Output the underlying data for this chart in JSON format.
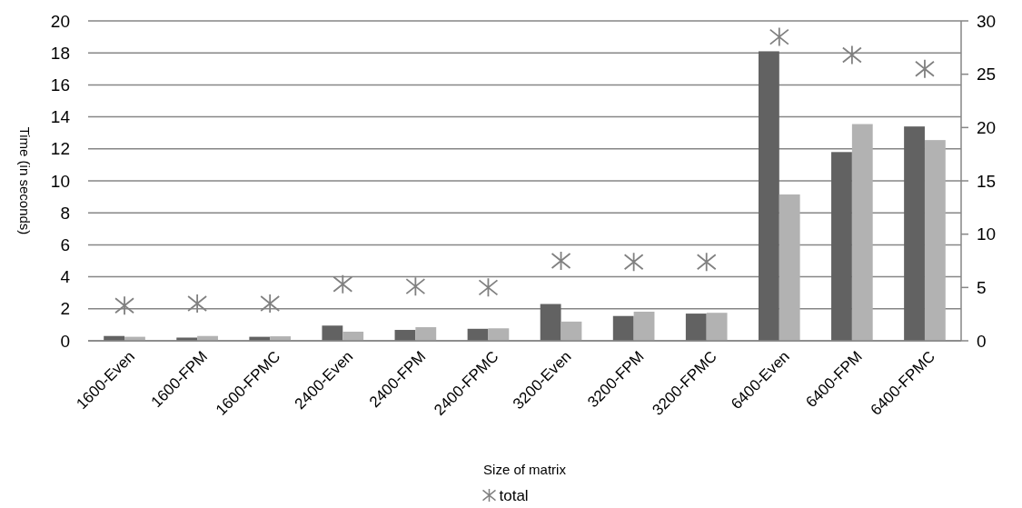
{
  "chart_data": {
    "type": "bar",
    "xlabel": "Size of matrix",
    "ylabel": "Time (in seconds)",
    "categories": [
      "1600-Even",
      "1600-FPM",
      "1600-FPMC",
      "2400-Even",
      "2400-FPM",
      "2400-FPMC",
      "3200-Even",
      "3200-FPM",
      "3200-FPMC",
      "6400-Even",
      "6400-FPM",
      "6400-FPMC"
    ],
    "series": [
      {
        "color": "#626262",
        "values": [
          0.3,
          0.2,
          0.25,
          0.95,
          0.68,
          0.75,
          2.3,
          1.55,
          1.7,
          18.1,
          11.8,
          13.4
        ]
      },
      {
        "color": "#b2b2b2",
        "values": [
          0.25,
          0.3,
          0.28,
          0.57,
          0.85,
          0.78,
          1.2,
          1.82,
          1.75,
          9.15,
          13.55,
          12.55
        ]
      },
      {
        "type": "scatter",
        "name": "total",
        "axis": "y2",
        "color": "#808080",
        "marker": "cross",
        "values": [
          3.3,
          3.5,
          3.5,
          5.3,
          5.1,
          5.0,
          7.5,
          7.4,
          7.4,
          28.5,
          26.8,
          25.5
        ]
      }
    ],
    "ylim": [
      0,
      20
    ],
    "yticks": [
      0,
      2,
      4,
      6,
      8,
      10,
      12,
      14,
      16,
      18,
      20
    ],
    "y2lim": [
      0,
      30
    ],
    "y2ticks": [
      0,
      5,
      10,
      15,
      20,
      25,
      30
    ],
    "grid": "y",
    "legend": "bottom"
  }
}
